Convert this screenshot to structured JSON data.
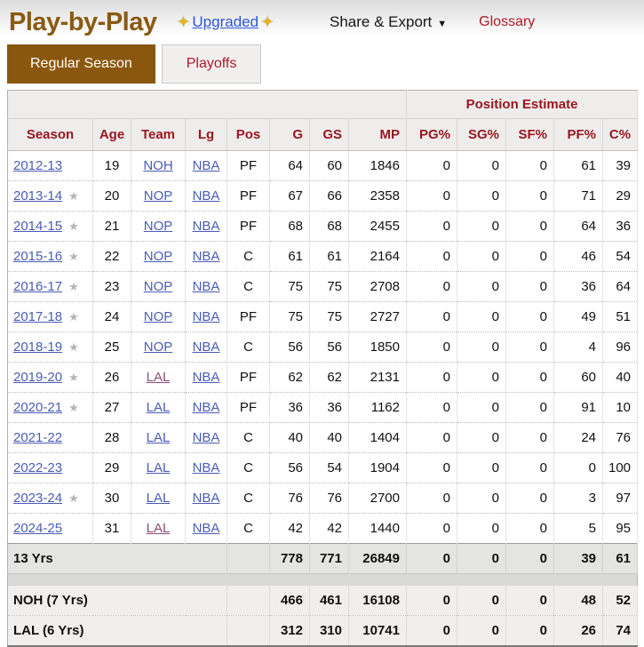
{
  "header": {
    "title": "Play-by-Play",
    "sparkle_icon": "✦",
    "upgraded_label": "Upgraded",
    "share_export_label": "Share & Export",
    "share_export_caret": "▼",
    "glossary_label": "Glossary"
  },
  "tabs": [
    {
      "label": "Regular Season",
      "active": true
    },
    {
      "label": "Playoffs",
      "active": false
    }
  ],
  "colors": {
    "accent_brown": "#8a570e",
    "title_brown": "#8a5a10",
    "table_header_red": "#981722",
    "action_red": "#ac1a2a",
    "link_blue": "#4a5cb5",
    "visited_purple": "#8d4a7c",
    "upgraded_blue": "#2b55dd",
    "header_bg_gray": "#eeedeb"
  },
  "table": {
    "group_header": "Position Estimate",
    "star_icon": "★",
    "columns": [
      {
        "key": "season",
        "label": "Season",
        "numeric": false
      },
      {
        "key": "age",
        "label": "Age",
        "numeric": false
      },
      {
        "key": "team",
        "label": "Team",
        "numeric": false
      },
      {
        "key": "lg",
        "label": "Lg",
        "numeric": false
      },
      {
        "key": "pos",
        "label": "Pos",
        "numeric": false
      },
      {
        "key": "g",
        "label": "G",
        "numeric": true
      },
      {
        "key": "gs",
        "label": "GS",
        "numeric": true
      },
      {
        "key": "mp",
        "label": "MP",
        "numeric": true
      },
      {
        "key": "pg_pct",
        "label": "PG%",
        "numeric": true
      },
      {
        "key": "sg_pct",
        "label": "SG%",
        "numeric": true
      },
      {
        "key": "sf_pct",
        "label": "SF%",
        "numeric": true
      },
      {
        "key": "pf_pct",
        "label": "PF%",
        "numeric": true
      },
      {
        "key": "c_pct",
        "label": "C%",
        "numeric": true
      }
    ],
    "rows": [
      {
        "season": "2012-13",
        "all_star": false,
        "age": 19,
        "team": "NOH",
        "team_visited": false,
        "lg": "NBA",
        "pos": "PF",
        "g": 64,
        "gs": 60,
        "mp": 1846,
        "pg_pct": 0,
        "sg_pct": 0,
        "sf_pct": 0,
        "pf_pct": 61,
        "c_pct": 39
      },
      {
        "season": "2013-14",
        "all_star": true,
        "age": 20,
        "team": "NOP",
        "team_visited": false,
        "lg": "NBA",
        "pos": "PF",
        "g": 67,
        "gs": 66,
        "mp": 2358,
        "pg_pct": 0,
        "sg_pct": 0,
        "sf_pct": 0,
        "pf_pct": 71,
        "c_pct": 29
      },
      {
        "season": "2014-15",
        "all_star": true,
        "age": 21,
        "team": "NOP",
        "team_visited": false,
        "lg": "NBA",
        "pos": "PF",
        "g": 68,
        "gs": 68,
        "mp": 2455,
        "pg_pct": 0,
        "sg_pct": 0,
        "sf_pct": 0,
        "pf_pct": 64,
        "c_pct": 36
      },
      {
        "season": "2015-16",
        "all_star": true,
        "age": 22,
        "team": "NOP",
        "team_visited": false,
        "lg": "NBA",
        "pos": "C",
        "g": 61,
        "gs": 61,
        "mp": 2164,
        "pg_pct": 0,
        "sg_pct": 0,
        "sf_pct": 0,
        "pf_pct": 46,
        "c_pct": 54
      },
      {
        "season": "2016-17",
        "all_star": true,
        "age": 23,
        "team": "NOP",
        "team_visited": false,
        "lg": "NBA",
        "pos": "C",
        "g": 75,
        "gs": 75,
        "mp": 2708,
        "pg_pct": 0,
        "sg_pct": 0,
        "sf_pct": 0,
        "pf_pct": 36,
        "c_pct": 64
      },
      {
        "season": "2017-18",
        "all_star": true,
        "age": 24,
        "team": "NOP",
        "team_visited": false,
        "lg": "NBA",
        "pos": "PF",
        "g": 75,
        "gs": 75,
        "mp": 2727,
        "pg_pct": 0,
        "sg_pct": 0,
        "sf_pct": 0,
        "pf_pct": 49,
        "c_pct": 51
      },
      {
        "season": "2018-19",
        "all_star": true,
        "age": 25,
        "team": "NOP",
        "team_visited": false,
        "lg": "NBA",
        "pos": "C",
        "g": 56,
        "gs": 56,
        "mp": 1850,
        "pg_pct": 0,
        "sg_pct": 0,
        "sf_pct": 0,
        "pf_pct": 4,
        "c_pct": 96
      },
      {
        "season": "2019-20",
        "all_star": true,
        "age": 26,
        "team": "LAL",
        "team_visited": true,
        "lg": "NBA",
        "pos": "PF",
        "g": 62,
        "gs": 62,
        "mp": 2131,
        "pg_pct": 0,
        "sg_pct": 0,
        "sf_pct": 0,
        "pf_pct": 60,
        "c_pct": 40
      },
      {
        "season": "2020-21",
        "all_star": true,
        "age": 27,
        "team": "LAL",
        "team_visited": false,
        "lg": "NBA",
        "pos": "PF",
        "g": 36,
        "gs": 36,
        "mp": 1162,
        "pg_pct": 0,
        "sg_pct": 0,
        "sf_pct": 0,
        "pf_pct": 91,
        "c_pct": 10
      },
      {
        "season": "2021-22",
        "all_star": false,
        "age": 28,
        "team": "LAL",
        "team_visited": false,
        "lg": "NBA",
        "pos": "C",
        "g": 40,
        "gs": 40,
        "mp": 1404,
        "pg_pct": 0,
        "sg_pct": 0,
        "sf_pct": 0,
        "pf_pct": 24,
        "c_pct": 76
      },
      {
        "season": "2022-23",
        "all_star": false,
        "age": 29,
        "team": "LAL",
        "team_visited": false,
        "lg": "NBA",
        "pos": "C",
        "g": 56,
        "gs": 54,
        "mp": 1904,
        "pg_pct": 0,
        "sg_pct": 0,
        "sf_pct": 0,
        "pf_pct": 0,
        "c_pct": 100
      },
      {
        "season": "2023-24",
        "all_star": true,
        "age": 30,
        "team": "LAL",
        "team_visited": false,
        "lg": "NBA",
        "pos": "C",
        "g": 76,
        "gs": 76,
        "mp": 2700,
        "pg_pct": 0,
        "sg_pct": 0,
        "sf_pct": 0,
        "pf_pct": 3,
        "c_pct": 97
      },
      {
        "season": "2024-25",
        "all_star": false,
        "age": 31,
        "team": "LAL",
        "team_visited": true,
        "lg": "NBA",
        "pos": "C",
        "g": 42,
        "gs": 42,
        "mp": 1440,
        "pg_pct": 0,
        "sg_pct": 0,
        "sf_pct": 0,
        "pf_pct": 5,
        "c_pct": 95
      }
    ],
    "career_total": {
      "label": "13 Yrs",
      "g": 778,
      "gs": 771,
      "mp": 26849,
      "pg_pct": 0,
      "sg_pct": 0,
      "sf_pct": 0,
      "pf_pct": 39,
      "c_pct": 61
    },
    "team_totals": [
      {
        "label": "NOH (7 Yrs)",
        "g": 466,
        "gs": 461,
        "mp": 16108,
        "pg_pct": 0,
        "sg_pct": 0,
        "sf_pct": 0,
        "pf_pct": 48,
        "c_pct": 52
      },
      {
        "label": "LAL (6 Yrs)",
        "g": 312,
        "gs": 310,
        "mp": 10741,
        "pg_pct": 0,
        "sg_pct": 0,
        "sf_pct": 0,
        "pf_pct": 26,
        "c_pct": 74
      }
    ]
  }
}
